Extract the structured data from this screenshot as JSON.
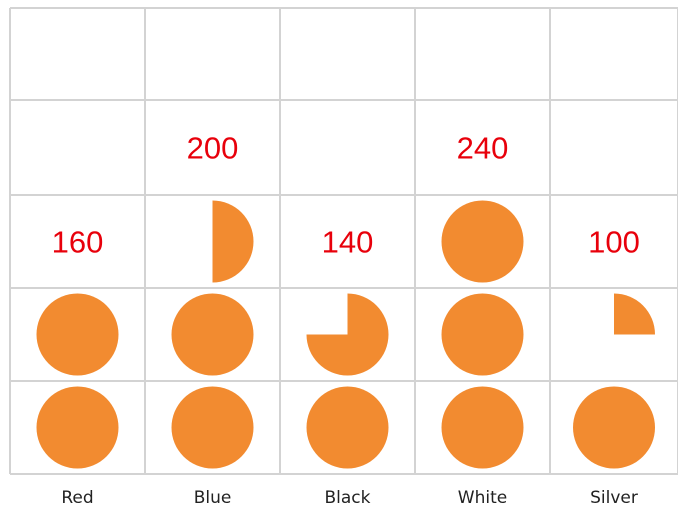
{
  "chart_data": {
    "type": "pictogram",
    "categories": [
      "Red",
      "Blue",
      "Black",
      "White",
      "Silver"
    ],
    "values": [
      160,
      200,
      140,
      240,
      100
    ],
    "value_labels": [
      "160",
      "200",
      "140",
      "240",
      "100"
    ],
    "symbols_shown": [
      2,
      2.5,
      1.75,
      3,
      1.25
    ],
    "symbol": "circle",
    "symbol_color": "#F28B30",
    "value_label_color": "#E8000B",
    "grid_color": "#D3D3D3",
    "grid": true,
    "title": "",
    "xlabel": "",
    "ylabel": ""
  }
}
